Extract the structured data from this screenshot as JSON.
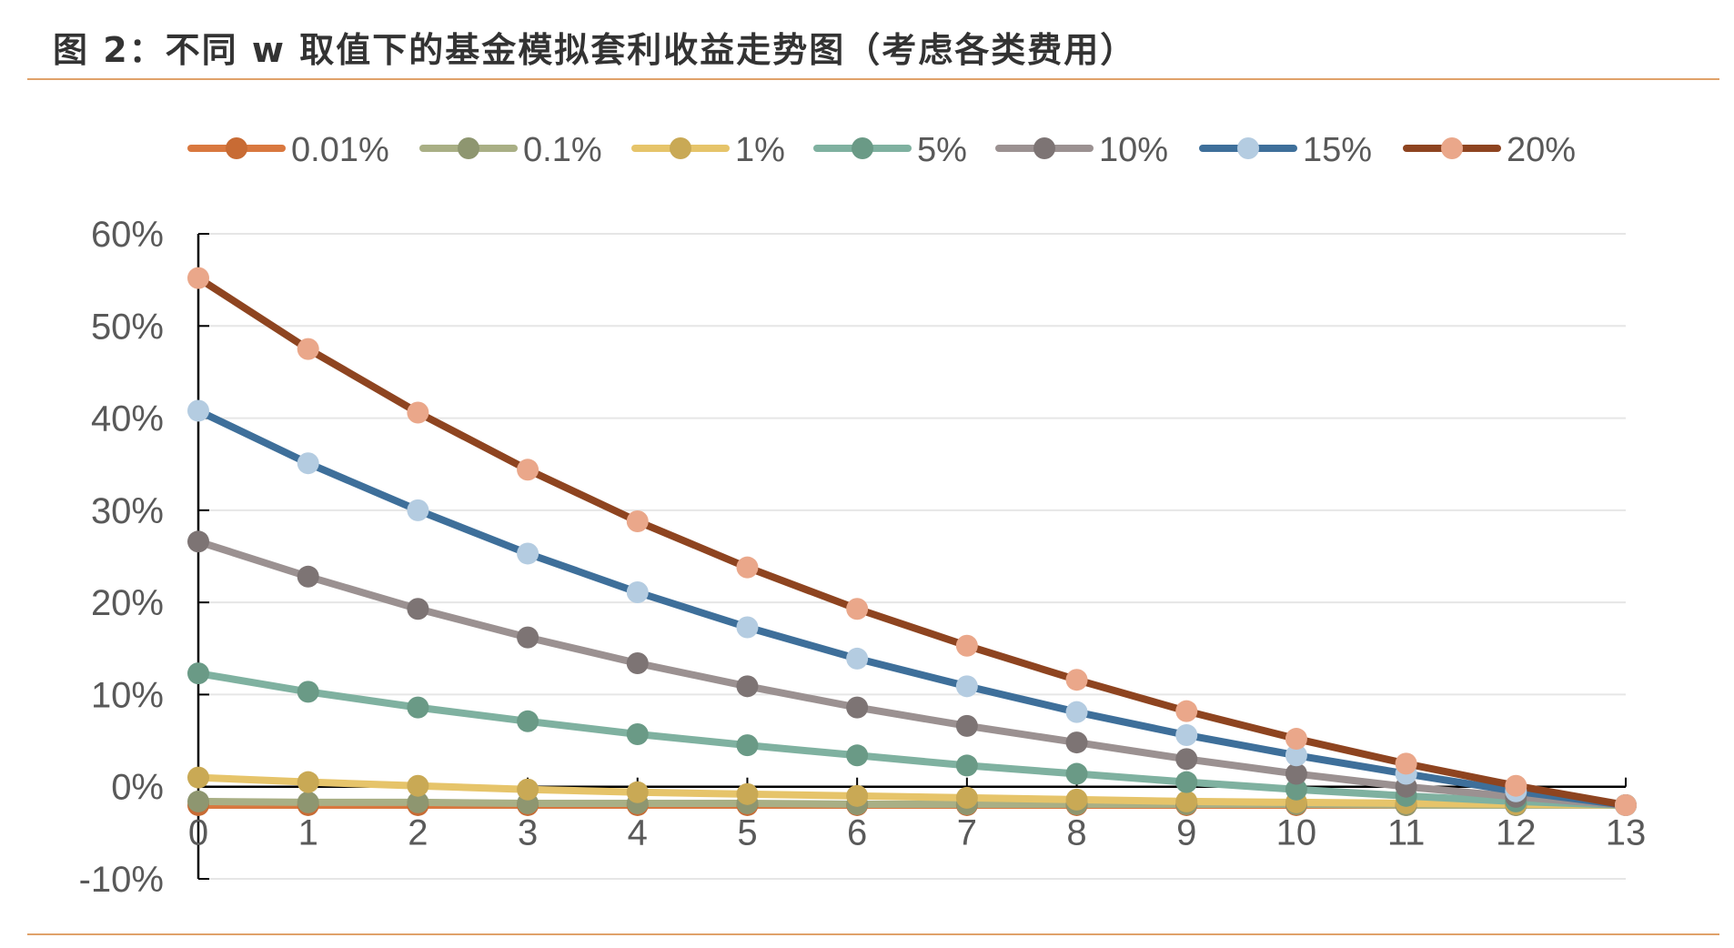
{
  "figure_title": "图 2：不同 w 取值下的基金模拟套利收益走势图（考虑各类费用）",
  "chart_data": {
    "type": "line",
    "title": "图 2：不同 w 取值下的基金模拟套利收益走势图（考虑各类费用）",
    "xlabel": "",
    "ylabel": "",
    "x": [
      0,
      1,
      2,
      3,
      4,
      5,
      6,
      7,
      8,
      9,
      10,
      11,
      12,
      13
    ],
    "x_tick_labels": [
      "0",
      "1",
      "2",
      "3",
      "4",
      "5",
      "6",
      "7",
      "8",
      "9",
      "10",
      "11",
      "12",
      "13"
    ],
    "ylim": [
      -10,
      60
    ],
    "y_ticks": [
      -10,
      0,
      10,
      20,
      30,
      40,
      50,
      60
    ],
    "y_tick_labels": [
      "-10%",
      "0%",
      "10%",
      "20%",
      "30%",
      "40%",
      "50%",
      "60%"
    ],
    "grid": true,
    "legend_position": "top",
    "series": [
      {
        "name": "0.01%",
        "line_color": "#D9783F",
        "marker_color": "#C86B34",
        "values": [
          -2.0,
          -2.0,
          -2.0,
          -2.0,
          -2.0,
          -2.0,
          -2.0,
          -2.0,
          -2.0,
          -2.0,
          -2.0,
          -2.0,
          -2.0,
          -2.0
        ]
      },
      {
        "name": "0.1%",
        "line_color": "#A9AF85",
        "marker_color": "#8E9670",
        "values": [
          -1.6,
          -1.7,
          -1.7,
          -1.8,
          -1.8,
          -1.8,
          -1.9,
          -1.9,
          -1.9,
          -1.9,
          -1.9,
          -2.0,
          -2.0,
          -2.0
        ]
      },
      {
        "name": "1%",
        "line_color": "#E6C46A",
        "marker_color": "#C9A955",
        "values": [
          1.0,
          0.5,
          0.1,
          -0.3,
          -0.6,
          -0.8,
          -1.0,
          -1.2,
          -1.4,
          -1.6,
          -1.7,
          -1.8,
          -1.9,
          -2.0
        ]
      },
      {
        "name": "5%",
        "line_color": "#7FB1A0",
        "marker_color": "#6A9A86",
        "values": [
          12.3,
          10.3,
          8.6,
          7.1,
          5.7,
          4.5,
          3.4,
          2.3,
          1.4,
          0.5,
          -0.3,
          -1.0,
          -1.6,
          -2.0
        ]
      },
      {
        "name": "10%",
        "line_color": "#9B9191",
        "marker_color": "#7D7474",
        "values": [
          26.6,
          22.8,
          19.3,
          16.2,
          13.4,
          10.9,
          8.6,
          6.6,
          4.8,
          3.0,
          1.4,
          0.0,
          -1.1,
          -2.0
        ]
      },
      {
        "name": "15%",
        "line_color": "#3E6F9A",
        "marker_color": "#B4CCE1",
        "values": [
          40.8,
          35.1,
          30.0,
          25.3,
          21.1,
          17.3,
          13.9,
          10.9,
          8.1,
          5.6,
          3.4,
          1.4,
          -0.5,
          -2.0
        ]
      },
      {
        "name": "20%",
        "line_color": "#8E4420",
        "marker_color": "#EAA78A",
        "values": [
          55.2,
          47.5,
          40.6,
          34.4,
          28.8,
          23.8,
          19.3,
          15.3,
          11.6,
          8.2,
          5.2,
          2.5,
          0.1,
          -2.0
        ]
      }
    ]
  }
}
